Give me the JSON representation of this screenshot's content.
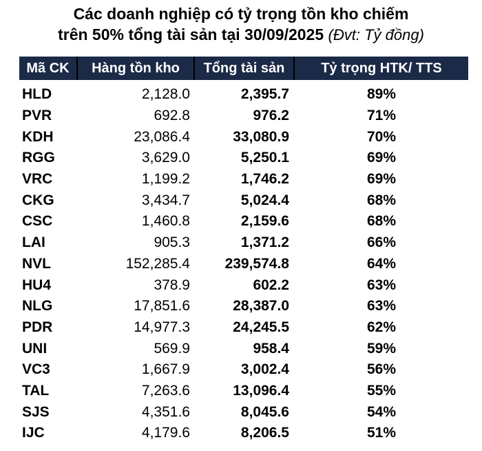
{
  "title": {
    "line1": "Các doanh nghiệp có tỷ trọng tồn kho chiếm",
    "line2": "trên 50% tổng tài sản tại 30/09/2025",
    "unit_note": "(Đvt: Tỷ đồng)"
  },
  "table": {
    "columns": [
      "Mã CK",
      "Hàng tồn kho",
      "Tổng tài sản",
      "Tỷ trọng HTK/ TTS"
    ],
    "rows": [
      {
        "ticker": "HLD",
        "inventory": "2,128.0",
        "total_assets": "2,395.7",
        "ratio": "89%"
      },
      {
        "ticker": "PVR",
        "inventory": "692.8",
        "total_assets": "976.2",
        "ratio": "71%"
      },
      {
        "ticker": "KDH",
        "inventory": "23,086.4",
        "total_assets": "33,080.9",
        "ratio": "70%"
      },
      {
        "ticker": "RGG",
        "inventory": "3,629.0",
        "total_assets": "5,250.1",
        "ratio": "69%"
      },
      {
        "ticker": "VRC",
        "inventory": "1,199.2",
        "total_assets": "1,746.2",
        "ratio": "69%"
      },
      {
        "ticker": "CKG",
        "inventory": "3,434.7",
        "total_assets": "5,024.4",
        "ratio": "68%"
      },
      {
        "ticker": "CSC",
        "inventory": "1,460.8",
        "total_assets": "2,159.6",
        "ratio": "68%"
      },
      {
        "ticker": "LAI",
        "inventory": "905.3",
        "total_assets": "1,371.2",
        "ratio": "66%"
      },
      {
        "ticker": "NVL",
        "inventory": "152,285.4",
        "total_assets": "239,574.8",
        "ratio": "64%"
      },
      {
        "ticker": "HU4",
        "inventory": "378.9",
        "total_assets": "602.2",
        "ratio": "63%"
      },
      {
        "ticker": "NLG",
        "inventory": "17,851.6",
        "total_assets": "28,387.0",
        "ratio": "63%"
      },
      {
        "ticker": "PDR",
        "inventory": "14,977.3",
        "total_assets": "24,245.5",
        "ratio": "62%"
      },
      {
        "ticker": "UNI",
        "inventory": "569.9",
        "total_assets": "958.4",
        "ratio": "59%"
      },
      {
        "ticker": "VC3",
        "inventory": "1,667.9",
        "total_assets": "3,002.4",
        "ratio": "56%"
      },
      {
        "ticker": "TAL",
        "inventory": "7,263.6",
        "total_assets": "13,096.4",
        "ratio": "55%"
      },
      {
        "ticker": "SJS",
        "inventory": "4,351.6",
        "total_assets": "8,045.6",
        "ratio": "54%"
      },
      {
        "ticker": "IJC",
        "inventory": "4,179.6",
        "total_assets": "8,206.5",
        "ratio": "51%"
      }
    ]
  },
  "colors": {
    "header_bg": "#1B2A47",
    "header_text": "#FFFFFF",
    "header_divider": "#000000",
    "body_text": "#000000",
    "background": "#FFFFFF"
  },
  "chart_data": {
    "type": "table",
    "title": "Các doanh nghiệp có tỷ trọng tồn kho chiếm trên 50% tổng tài sản tại 30/09/2025",
    "unit": "Tỷ đồng",
    "columns": [
      "Mã CK",
      "Hàng tồn kho",
      "Tổng tài sản",
      "Tỷ trọng HTK/ TTS"
    ],
    "rows": [
      [
        "HLD",
        2128.0,
        2395.7,
        "89%"
      ],
      [
        "PVR",
        692.8,
        976.2,
        "71%"
      ],
      [
        "KDH",
        23086.4,
        33080.9,
        "70%"
      ],
      [
        "RGG",
        3629.0,
        5250.1,
        "69%"
      ],
      [
        "VRC",
        1199.2,
        1746.2,
        "69%"
      ],
      [
        "CKG",
        3434.7,
        5024.4,
        "68%"
      ],
      [
        "CSC",
        1460.8,
        2159.6,
        "68%"
      ],
      [
        "LAI",
        905.3,
        1371.2,
        "66%"
      ],
      [
        "NVL",
        152285.4,
        239574.8,
        "64%"
      ],
      [
        "HU4",
        378.9,
        602.2,
        "63%"
      ],
      [
        "NLG",
        17851.6,
        28387.0,
        "63%"
      ],
      [
        "PDR",
        14977.3,
        24245.5,
        "62%"
      ],
      [
        "UNI",
        569.9,
        958.4,
        "59%"
      ],
      [
        "VC3",
        1667.9,
        3002.4,
        "56%"
      ],
      [
        "TAL",
        7263.6,
        13096.4,
        "55%"
      ],
      [
        "SJS",
        4351.6,
        8045.6,
        "54%"
      ],
      [
        "IJC",
        4179.6,
        8206.5,
        "51%"
      ]
    ]
  }
}
